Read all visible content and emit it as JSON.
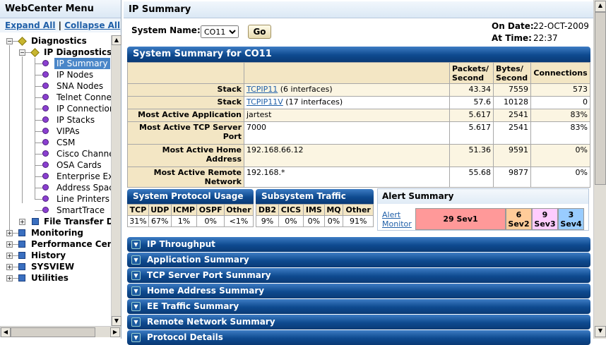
{
  "left": {
    "title": "WebCenter Menu",
    "expand_all": "Expand All",
    "sep": "|",
    "collapse_all": "Collapse All",
    "tree": {
      "diagnostics": "Diagnostics",
      "ip_diagnostics": "IP Diagnostics",
      "items": [
        "IP Summary",
        "IP Nodes",
        "SNA Nodes",
        "Telnet Conne",
        "IP Connectior",
        "IP Stacks",
        "VIPAs",
        "CSM",
        "Cisco Channe",
        "OSA Cards",
        "Enterprise Ex",
        "Address Spac",
        "Line Printers",
        "SmartTrace"
      ],
      "file_transfer": "File Transfer D",
      "top": [
        "Monitoring",
        "Performance Cen",
        "History",
        "SYSVIEW",
        "Utilities"
      ]
    }
  },
  "main": {
    "title": "IP Summary",
    "system_name_label": "System Name:",
    "system_value": "CO11",
    "go": "Go",
    "on_date_label": "On Date:",
    "on_date": "22-OCT-2009",
    "at_time_label": "At Time:",
    "at_time": "22:37",
    "summary": {
      "title": "System Summary for CO11",
      "headers": [
        "",
        "",
        "Packets/ Second",
        "Bytes/ Second",
        "Connections"
      ],
      "rows": [
        {
          "label": "Stack",
          "link": "TCPIP11",
          "text": " (6 interfaces)",
          "pps": "43.34",
          "bps": "7559",
          "conn": "573"
        },
        {
          "label": "Stack",
          "link": "TCPIP11V",
          "text": " (17 interfaces)",
          "pps": "57.6",
          "bps": "10128",
          "conn": "0"
        },
        {
          "label": "Most Active Application",
          "link": "",
          "text": "jartest",
          "pps": "5.617",
          "bps": "2541",
          "conn": "83%"
        },
        {
          "label": "Most Active TCP Server Port",
          "link": "",
          "text": "7000",
          "pps": "5.617",
          "bps": "2541",
          "conn": "83%"
        },
        {
          "label": "Most Active Home Address",
          "link": "",
          "text": "192.168.66.12",
          "pps": "51.36",
          "bps": "9591",
          "conn": "0%"
        },
        {
          "label": "Most Active Remote Network",
          "link": "",
          "text": "192.168.*",
          "pps": "55.68",
          "bps": "9877",
          "conn": "0%"
        }
      ]
    },
    "protocol": {
      "title": "System Protocol Usage",
      "headers": [
        "TCP",
        "UDP",
        "ICMP",
        "OSPF",
        "Other"
      ],
      "values": [
        "31%",
        "67%",
        "1%",
        "0%",
        "<1%"
      ]
    },
    "subsystem": {
      "title": "Subsystem Traffic",
      "headers": [
        "DB2",
        "CICS",
        "IMS",
        "MQ",
        "Other"
      ],
      "values": [
        "9%",
        "0%",
        "0%",
        "0%",
        "91%"
      ]
    },
    "alert": {
      "title": "Alert Summary",
      "link": "Alert Monitor",
      "sev1": "29 Sev1",
      "sev2": "6 Sev2",
      "sev3": "9 Sev3",
      "sev4": "3 Sev4",
      "colors": {
        "sev1": "#ff9999",
        "sev2": "#ffcc99",
        "sev3": "#ffccff",
        "sev4": "#99ccff"
      }
    },
    "sections": [
      "IP Throughput",
      "Application Summary",
      "TCP Server Port Summary",
      "Home Address Summary",
      "EE Traffic Summary",
      "Remote Network Summary",
      "Protocol Details"
    ]
  }
}
